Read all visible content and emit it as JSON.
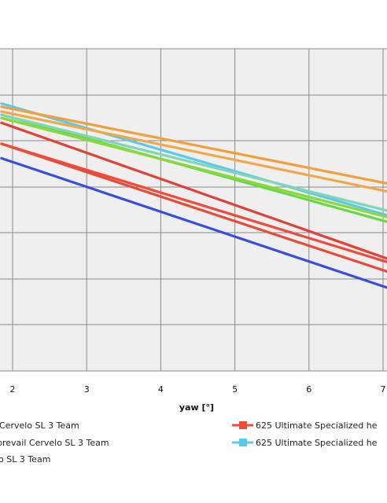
{
  "chart_data": {
    "type": "line",
    "title": "",
    "xlabel": "yaw [°]",
    "ylabel": "",
    "xlim": [
      1.85,
      7.1
    ],
    "ylim": [
      0,
      10
    ],
    "x_ticks": [
      "2",
      "3",
      "4",
      "5",
      "6",
      "7"
    ],
    "grid": true,
    "legend_position": "bottom",
    "series": [
      {
        "name": "Cervelo SL 3 Team",
        "color": "#3a4fd8",
        "x": [
          1.85,
          7.1
        ],
        "y": [
          6.6,
          2.55
        ]
      },
      {
        "name": "prevail Cervelo SL 3 Team",
        "color": "#e84c36",
        "x": [
          1.85,
          7.1
        ],
        "y": [
          7.05,
          3.05
        ]
      },
      {
        "name": "o SL 3 Team",
        "color": "#e0413a",
        "x": [
          1.85,
          7.1
        ],
        "y": [
          7.7,
          3.45
        ]
      },
      {
        "name": "625 Ultimate Specialized he",
        "color": "#ef4a3c",
        "x": [
          1.85,
          7.1
        ],
        "y": [
          7.05,
          3.35
        ]
      },
      {
        "name": "625 Ultimate Specialized he",
        "color": "#5bc8ec",
        "x": [
          1.85,
          7.1
        ],
        "y": [
          8.3,
          4.8
        ]
      },
      {
        "name": "",
        "color": "#f0a03c",
        "x": [
          1.85,
          7.1
        ],
        "y": [
          8.2,
          5.8
        ]
      },
      {
        "name": "",
        "color": "#f0a848",
        "x": [
          1.85,
          7.1
        ],
        "y": [
          8.05,
          5.55
        ]
      },
      {
        "name": "",
        "color": "#67d84a",
        "x": [
          1.85,
          7.1
        ],
        "y": [
          7.95,
          4.6
        ]
      },
      {
        "name": "",
        "color": "#8cd83c",
        "x": [
          1.85,
          7.1
        ],
        "y": [
          7.85,
          4.75
        ]
      },
      {
        "name": "",
        "color": "#7fd6b8",
        "x": [
          1.85,
          7.1
        ],
        "y": [
          7.95,
          4.95
        ]
      }
    ]
  },
  "legend": {
    "items": [
      {
        "label": "Cervelo SL 3 Team",
        "color": "#3a4fd8"
      },
      {
        "label": "prevail Cervelo SL 3 Team",
        "color": "#e84c36"
      },
      {
        "label": "o SL 3 Team",
        "color": "#e0413a"
      },
      {
        "label": "625 Ultimate Specialized he",
        "color": "#ef4a3c"
      },
      {
        "label": "625 Ultimate Specialized he",
        "color": "#5bc8ec"
      }
    ]
  }
}
